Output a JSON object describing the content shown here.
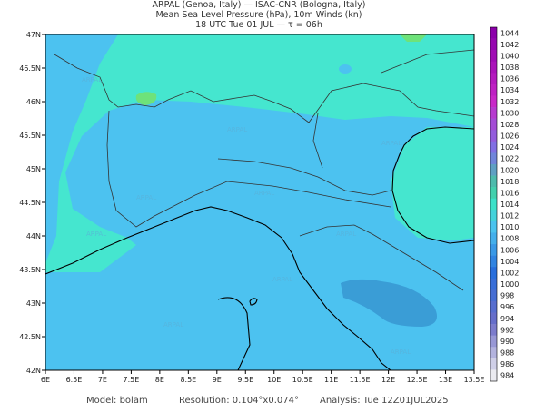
{
  "header": {
    "lines": [
      "ARPAL (Genoa, Italy)  —  ISAC-CNR (Bologna, Italy)",
      "Mean Sea Level Pressure (hPa), 10m Winds (kn)",
      "18 UTC Tue 01 JUL  —  τ = 06h"
    ]
  },
  "map": {
    "lat_labels": [
      "47N",
      "46.5N",
      "46N",
      "45.5N",
      "45N",
      "44.5N",
      "44N",
      "43.5N",
      "43N",
      "42.5N",
      "42N"
    ],
    "lon_labels": [
      "6E",
      "6.5E",
      "7E",
      "7.5E",
      "8E",
      "8.5E",
      "9E",
      "9.5E",
      "10E",
      "10.5E",
      "11E",
      "11.5E",
      "12E",
      "12.5E",
      "13E",
      "13.5E"
    ],
    "watermark": "ARPAL"
  },
  "colorbar": {
    "levels": [
      1044,
      1042,
      1040,
      1038,
      1036,
      1034,
      1032,
      1030,
      1028,
      1026,
      1024,
      1022,
      1020,
      1018,
      1016,
      1014,
      1012,
      1010,
      1008,
      1006,
      1004,
      1002,
      1000,
      998,
      996,
      994,
      992,
      990,
      988,
      986,
      984
    ]
  },
  "footer": {
    "model": "Model: bolam",
    "resolution": "Resolution: 0.104°x0.074°",
    "analysis": "Analysis: Tue 12Z01JUL2025"
  }
}
